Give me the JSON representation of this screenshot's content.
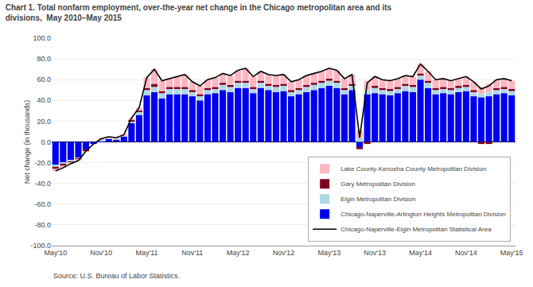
{
  "chart_data": {
    "type": "bar",
    "title": "Chart 1. Total nonfarm employment, over-the-year net change in the Chicago metropolitan area and its",
    "subtitle": "divisions,  May 2010–May 2015",
    "ylabel": "Net change (in thousands)",
    "annotations": [
      {
        "text": "Source: U.S. Bureau of Labor Statistics."
      }
    ],
    "stacked": true,
    "grid": true,
    "legend": "lower right",
    "categories": [
      "May'10",
      null,
      null,
      null,
      null,
      null,
      "Nov'10",
      null,
      null,
      null,
      null,
      null,
      "May'11",
      null,
      null,
      null,
      null,
      null,
      "Nov'11",
      null,
      null,
      null,
      null,
      null,
      "May'12",
      null,
      null,
      null,
      null,
      null,
      "Nov'12",
      null,
      null,
      null,
      null,
      null,
      "May'13",
      null,
      null,
      null,
      null,
      null,
      "Nov'13",
      null,
      null,
      null,
      null,
      null,
      "May'14",
      null,
      null,
      null,
      null,
      null,
      "Nov'14",
      null,
      null,
      null,
      null,
      null,
      "May'15"
    ],
    "ylim": [
      -100.0,
      100.0
    ],
    "yticks": [
      {
        "value": -100.0,
        "label": "-100.0"
      },
      {
        "value": -80.0,
        "label": "-80.0"
      },
      {
        "value": -60.0,
        "label": "-60.0"
      },
      {
        "value": -40.0,
        "label": "-40.0"
      },
      {
        "value": -20.0,
        "label": "-20.0"
      },
      {
        "value": 0.0,
        "label": "0.0"
      },
      {
        "value": 20.0,
        "label": "20.0"
      },
      {
        "value": 40.0,
        "label": "40.0"
      },
      {
        "value": 60.0,
        "label": "60.0"
      },
      {
        "value": 80.0,
        "label": "80.0"
      },
      {
        "value": 100.0,
        "label": "100.0"
      }
    ],
    "series": [
      {
        "name": "Chicago-Naperville-Arlington Heights Metropolitan Division",
        "type": "bar",
        "color": "#0000EE",
        "values": [
          -22,
          -20,
          -18,
          -15,
          -8,
          -2,
          1,
          3,
          2,
          5,
          18,
          26,
          45,
          48,
          42,
          46,
          46,
          46,
          44,
          40,
          46,
          47,
          50,
          48,
          52,
          52,
          47,
          52,
          50,
          48,
          49,
          44,
          46,
          48,
          50,
          52,
          54,
          52,
          46,
          50,
          -5,
          46,
          47,
          46,
          45,
          47,
          49,
          48,
          60,
          52,
          46,
          47,
          46,
          48,
          49,
          44,
          43,
          44,
          46,
          47,
          45
        ]
      },
      {
        "name": "Elgin Metropolitan Division",
        "type": "bar",
        "color": "#ADD8E6",
        "values": [
          -2,
          -1,
          -1,
          -1,
          0,
          0,
          1,
          1,
          1,
          1,
          2,
          3,
          5,
          5,
          5,
          5,
          5,
          5,
          4,
          4,
          4,
          4,
          5,
          5,
          5,
          5,
          4,
          5,
          4,
          5,
          5,
          4,
          4,
          5,
          5,
          5,
          5,
          5,
          4,
          4,
          4,
          4,
          5,
          4,
          4,
          4,
          5,
          5,
          4,
          5,
          4,
          4,
          4,
          4,
          4,
          4,
          3,
          4,
          4,
          4,
          4
        ]
      },
      {
        "name": "Gary Metropolitan Division",
        "type": "bar",
        "color": "#800020",
        "values": [
          -2,
          -2,
          -1,
          -1,
          -1,
          0,
          0,
          0,
          0,
          0,
          1,
          1,
          2,
          3,
          2,
          2,
          2,
          2,
          2,
          2,
          2,
          2,
          2,
          2,
          2,
          2,
          2,
          2,
          2,
          2,
          2,
          2,
          2,
          2,
          2,
          2,
          2,
          2,
          2,
          2,
          -2,
          -2,
          2,
          2,
          2,
          2,
          2,
          2,
          2,
          2,
          2,
          2,
          2,
          2,
          2,
          2,
          -2,
          -2,
          2,
          2,
          2
        ]
      },
      {
        "name": "Lake County-Kenosha County Metropolitan Division",
        "type": "bar",
        "color": "#FFB6C1",
        "values": [
          -2,
          -2,
          -1,
          -1,
          0,
          0,
          1,
          1,
          1,
          1,
          2,
          3,
          10,
          14,
          10,
          8,
          10,
          12,
          8,
          8,
          8,
          9,
          9,
          9,
          10,
          12,
          10,
          9,
          9,
          9,
          9,
          8,
          8,
          9,
          9,
          9,
          10,
          10,
          9,
          9,
          7,
          9,
          9,
          8,
          8,
          8,
          8,
          8,
          9,
          9,
          8,
          8,
          7,
          7,
          8,
          8,
          7,
          8,
          8,
          8,
          8
        ]
      },
      {
        "name": "Chicago-Naperville-Elgin Metropolitan Statistical Area",
        "type": "line",
        "color": "#000000",
        "values": [
          -28,
          -25,
          -21,
          -18,
          -9,
          -2,
          3,
          5,
          4,
          7,
          23,
          33,
          62,
          70,
          59,
          61,
          63,
          65,
          58,
          54,
          60,
          62,
          66,
          64,
          69,
          71,
          63,
          68,
          65,
          64,
          65,
          58,
          60,
          64,
          66,
          68,
          71,
          69,
          61,
          65,
          4,
          57,
          63,
          60,
          59,
          61,
          64,
          63,
          75,
          68,
          60,
          61,
          59,
          61,
          63,
          58,
          51,
          54,
          60,
          61,
          59
        ]
      }
    ]
  }
}
